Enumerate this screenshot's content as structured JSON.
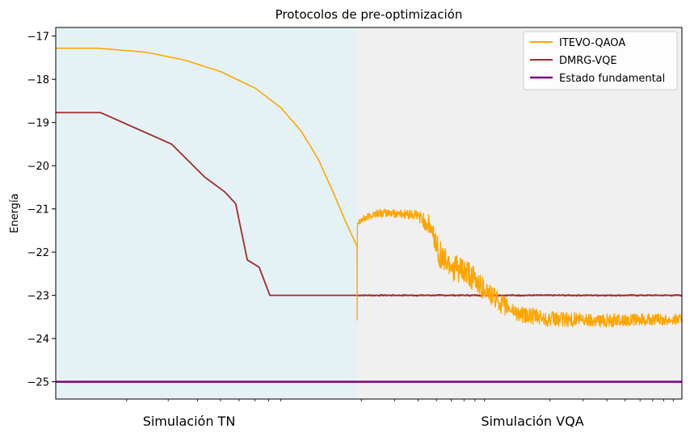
{
  "chart_data": {
    "type": "line",
    "title": "Protocolos de pre-optimización",
    "xlabel": "",
    "ylabel": "Energía",
    "ylim": [
      -25.4,
      -16.8
    ],
    "y_ticks": [
      -17,
      -18,
      -19,
      -20,
      -21,
      -22,
      -23,
      -24,
      -25
    ],
    "y_tick_labels": [
      "−17",
      "−18",
      "−19",
      "−20",
      "−21",
      "−22",
      "−23",
      "−24",
      "−25"
    ],
    "x_scale": "log",
    "grid": false,
    "legend_position": "top-right",
    "regions": [
      {
        "label": "Simulación TN",
        "color": "#e4f2f5"
      },
      {
        "label": "Simulación VQA",
        "color": "#f0f0f0"
      }
    ],
    "series": [
      {
        "name": "ITEVO-QAOA",
        "color": "#ffa500",
        "tn_phase": [
          {
            "x": 1,
            "y": -17.28
          },
          {
            "x": 1.5,
            "y": -17.28
          },
          {
            "x": 2.4,
            "y": -17.37
          },
          {
            "x": 3.5,
            "y": -17.55
          },
          {
            "x": 5,
            "y": -17.82
          },
          {
            "x": 7,
            "y": -18.2
          },
          {
            "x": 9,
            "y": -18.65
          },
          {
            "x": 11,
            "y": -19.2
          },
          {
            "x": 13,
            "y": -19.85
          },
          {
            "x": 15,
            "y": -20.6
          },
          {
            "x": 17,
            "y": -21.3
          },
          {
            "x": 19,
            "y": -21.87
          }
        ],
        "vqa_phase": [
          {
            "x": 19,
            "y": -21.3
          },
          {
            "x": 24,
            "y": -21.1
          },
          {
            "x": 30,
            "y": -21.1
          },
          {
            "x": 40,
            "y": -21.15
          },
          {
            "x": 46,
            "y": -21.4
          },
          {
            "x": 53,
            "y": -22.1
          },
          {
            "x": 62,
            "y": -22.35
          },
          {
            "x": 75,
            "y": -22.55
          },
          {
            "x": 90,
            "y": -22.85
          },
          {
            "x": 110,
            "y": -23.2
          },
          {
            "x": 140,
            "y": -23.45
          },
          {
            "x": 200,
            "y": -23.55
          },
          {
            "x": 400,
            "y": -23.58
          },
          {
            "x": 1000,
            "y": -23.55
          }
        ],
        "vqa_noise_amplitude": [
          {
            "x": 19,
            "a": 0.08
          },
          {
            "x": 40,
            "a": 0.12
          },
          {
            "x": 50,
            "a": 0.35
          },
          {
            "x": 80,
            "a": 0.3
          },
          {
            "x": 120,
            "a": 0.2
          },
          {
            "x": 1000,
            "a": 0.12
          }
        ]
      },
      {
        "name": "DMRG-VQE",
        "color": "#a52a2a",
        "points": [
          {
            "x": 1,
            "y": -18.77
          },
          {
            "x": 1.55,
            "y": -18.77
          },
          {
            "x": 3.1,
            "y": -19.5
          },
          {
            "x": 4.3,
            "y": -20.27
          },
          {
            "x": 5.2,
            "y": -20.6
          },
          {
            "x": 5.8,
            "y": -20.88
          },
          {
            "x": 6.5,
            "y": -22.18
          },
          {
            "x": 7.3,
            "y": -22.35
          },
          {
            "x": 8.1,
            "y": -23.0
          },
          {
            "x": 1000,
            "y": -23.0
          }
        ]
      },
      {
        "name": "Estado fundamental",
        "color": "#800080",
        "value": -25.0
      }
    ]
  }
}
